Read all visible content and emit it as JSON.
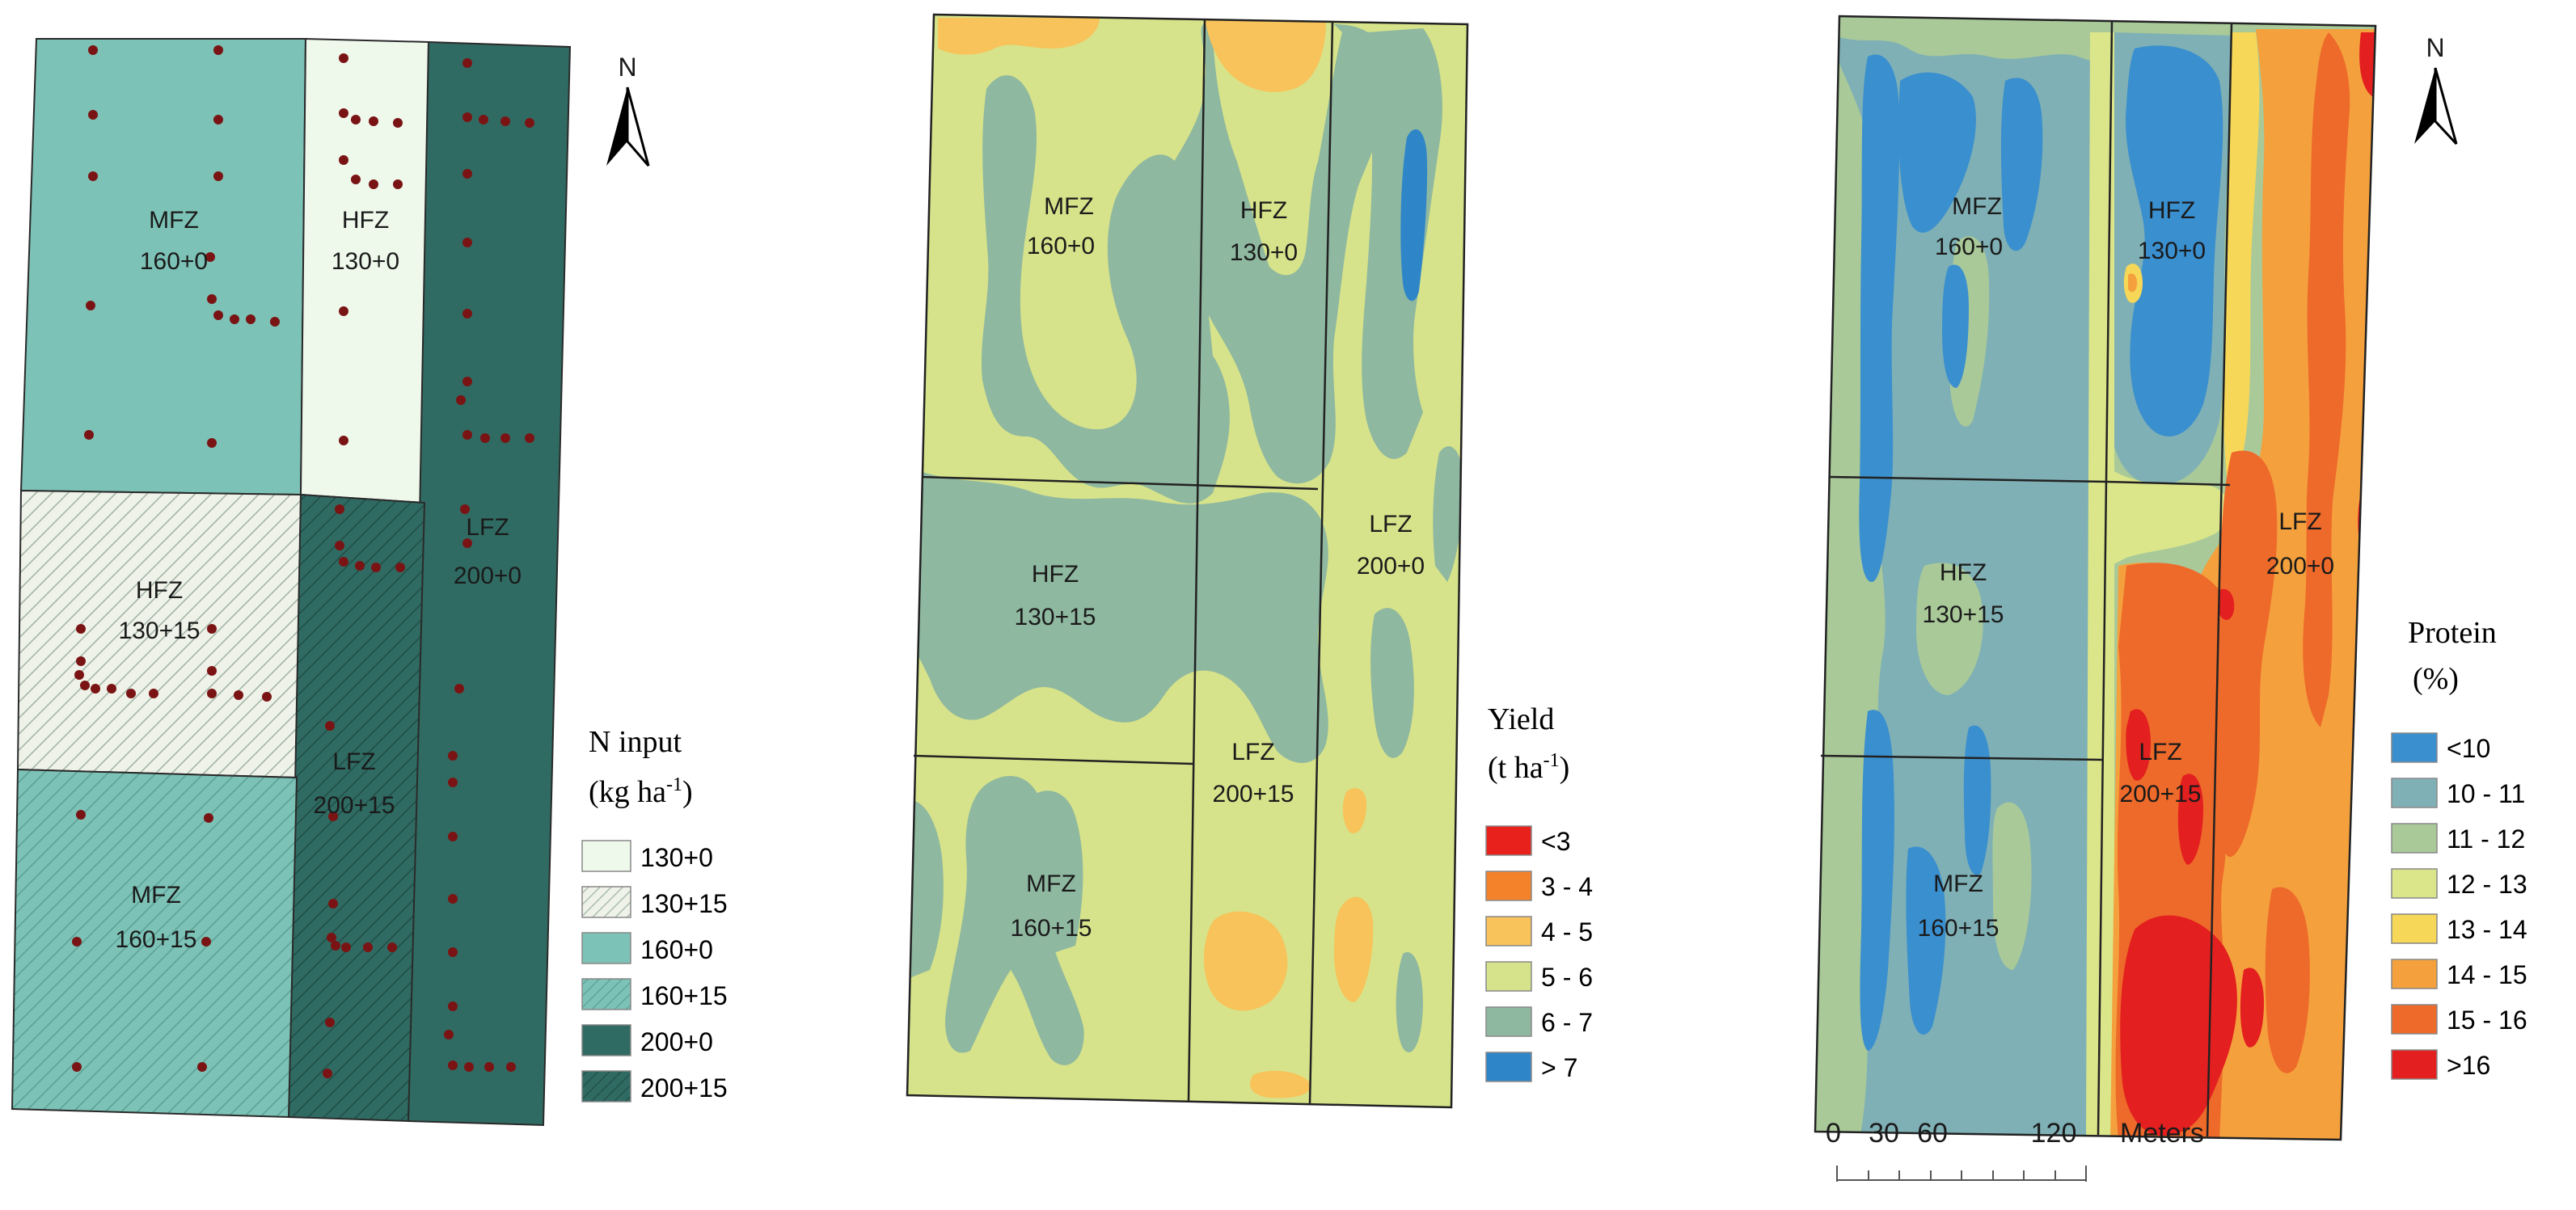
{
  "panels": {
    "n_input": {
      "north": "N",
      "legend_title_1": "N input",
      "legend_title_2": "(kg ha",
      "legend_unit_sup": "-1",
      "legend_title_close": ")",
      "legend": [
        {
          "label": "130+0",
          "color": "#eef9ec",
          "hatch": false
        },
        {
          "label": "130+15",
          "color": "#eef2e8",
          "hatch": true
        },
        {
          "label": "160+0",
          "color": "#7dc2b6",
          "hatch": false
        },
        {
          "label": "160+15",
          "color": "#7dc2b6",
          "hatch": true
        },
        {
          "label": "200+0",
          "color": "#2f6b62",
          "hatch": false
        },
        {
          "label": "200+15",
          "color": "#2f6b62",
          "hatch": true
        }
      ],
      "zones": [
        {
          "name": "MFZ",
          "rate": "160+0"
        },
        {
          "name": "HFZ",
          "rate": "130+0"
        },
        {
          "name": "HFZ",
          "rate": "130+15"
        },
        {
          "name": "LFZ",
          "rate": "200+0"
        },
        {
          "name": "LFZ",
          "rate": "200+15"
        },
        {
          "name": "MFZ",
          "rate": "160+15"
        }
      ],
      "sample_point_color": "#7a1414"
    },
    "yield": {
      "legend_title_1": "Yield",
      "legend_title_2": "(t ha",
      "legend_unit_sup": "-1",
      "legend_title_close": ")",
      "legend": [
        {
          "label": "<3",
          "color": "#e8211c"
        },
        {
          "label": "3 - 4",
          "color": "#f4822a"
        },
        {
          "label": "4 - 5",
          "color": "#f7c35a"
        },
        {
          "label": "5 - 6",
          "color": "#d7e38a"
        },
        {
          "label": "6 - 7",
          "color": "#8fb8a0"
        },
        {
          "label": "> 7",
          "color": "#2e86c8"
        }
      ],
      "zones": [
        {
          "name": "MFZ",
          "rate": "160+0"
        },
        {
          "name": "HFZ",
          "rate": "130+0"
        },
        {
          "name": "HFZ",
          "rate": "130+15"
        },
        {
          "name": "LFZ",
          "rate": "200+0"
        },
        {
          "name": "LFZ",
          "rate": "200+15"
        },
        {
          "name": "MFZ",
          "rate": "160+15"
        }
      ]
    },
    "protein": {
      "north": "N",
      "legend_title_1": "Protein",
      "legend_title_2": "(%)",
      "legend": [
        {
          "label": "<10",
          "color": "#3a8fcf"
        },
        {
          "label": "10 - 11",
          "color": "#7fb0b5"
        },
        {
          "label": "11 - 12",
          "color": "#a9c999"
        },
        {
          "label": "12 - 13",
          "color": "#dbe68a"
        },
        {
          "label": "13 - 14",
          "color": "#f7d757"
        },
        {
          "label": "14 - 15",
          "color": "#f4a13d"
        },
        {
          "label": "15 - 16",
          "color": "#ee6a2a"
        },
        {
          "label": ">16",
          "color": "#e41f1f"
        }
      ],
      "zones": [
        {
          "name": "MFZ",
          "rate": "160+0"
        },
        {
          "name": "HFZ",
          "rate": "130+0"
        },
        {
          "name": "HFZ",
          "rate": "130+15"
        },
        {
          "name": "LFZ",
          "rate": "200+0"
        },
        {
          "name": "LFZ",
          "rate": "200+15"
        },
        {
          "name": "MFZ",
          "rate": "160+15"
        }
      ],
      "scale_bar": {
        "ticks": [
          "0",
          "30",
          "60",
          "120"
        ],
        "unit": "Meters"
      }
    }
  }
}
